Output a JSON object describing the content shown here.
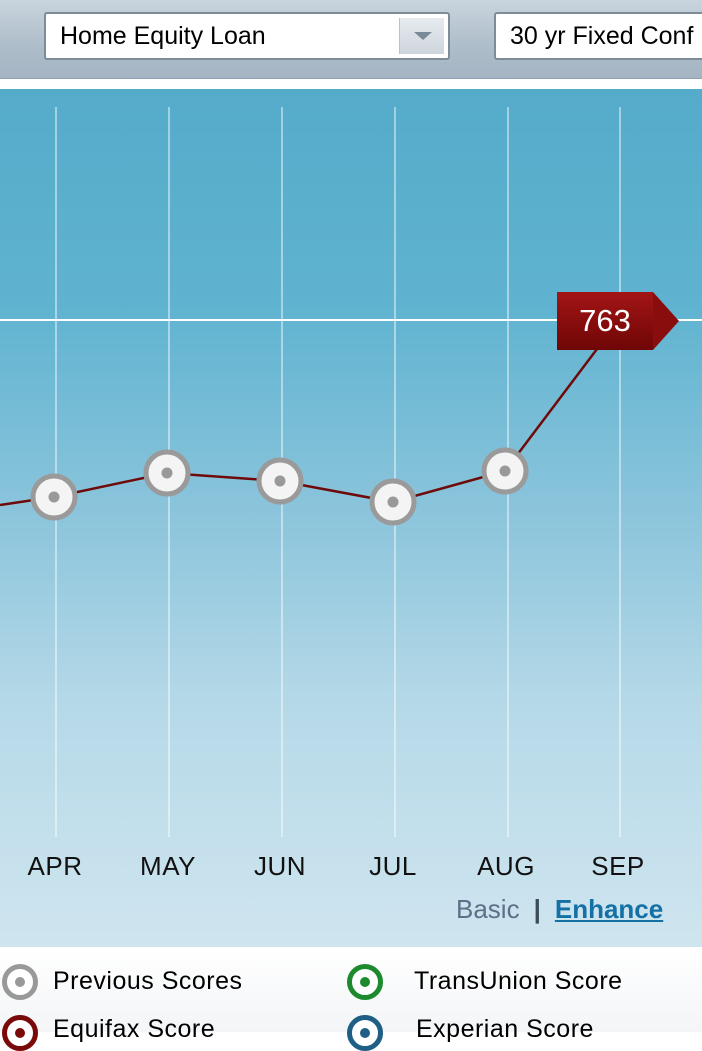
{
  "selectors": {
    "loan_type": "Home Equity Loan",
    "rate_type": "30 yr Fixed Conf"
  },
  "chart": {
    "current_score": "763",
    "months": [
      "APR",
      "MAY",
      "JUN",
      "JUL",
      "AUG",
      "SEP"
    ]
  },
  "chart_data": {
    "type": "line",
    "categories": [
      "APR",
      "MAY",
      "JUN",
      "JUL",
      "AUG",
      "SEP"
    ],
    "series": [
      {
        "values": [
          null,
          null,
          null,
          null,
          null,
          763
        ]
      }
    ],
    "title": "",
    "xlabel": "",
    "ylabel": "",
    "grid": true,
    "latest_value_label": "763"
  },
  "view_toggle": {
    "basic": "Basic",
    "separator": "|",
    "enhanced": "Enhance"
  },
  "legend": {
    "previous": "Previous Scores",
    "transunion": "TransUnion Score",
    "equifax": "Equifax Score",
    "experian": "Experian Score"
  },
  "colors": {
    "equifax": "#7a0a0a",
    "transunion": "#1e8a2e",
    "experian": "#1f5f86",
    "previous": "#999999"
  }
}
